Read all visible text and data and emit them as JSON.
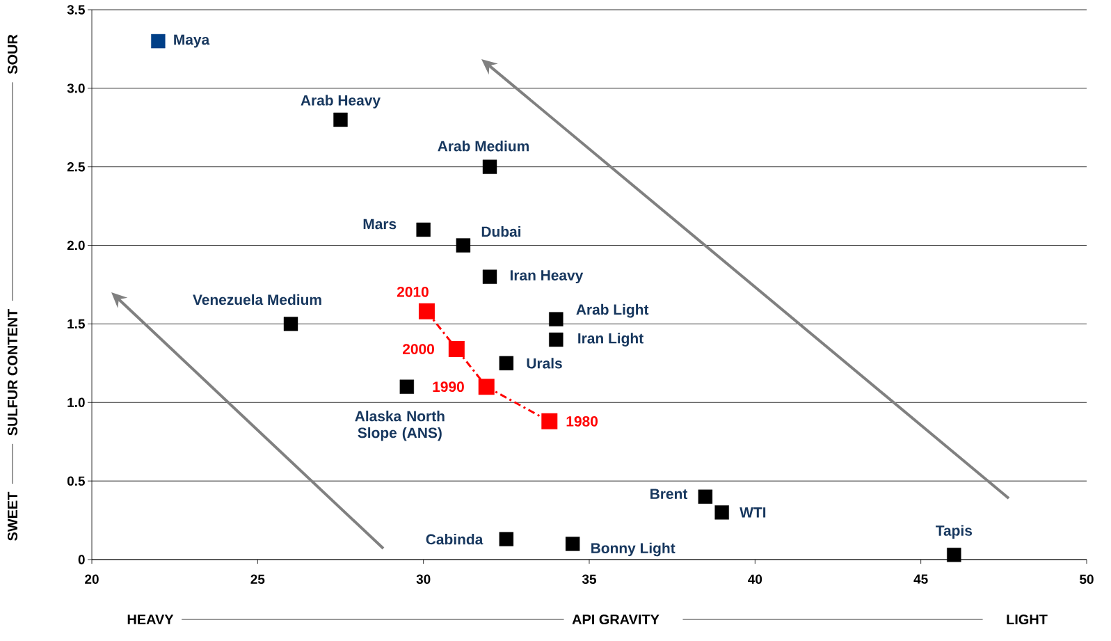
{
  "chart_data": {
    "type": "scatter",
    "xlabel": "API GRAVITY",
    "ylabel": "SULFUR CONTENT",
    "xlim": [
      20,
      50
    ],
    "ylim": [
      0,
      3.5
    ],
    "xticks": [
      20,
      25,
      30,
      35,
      40,
      45,
      50
    ],
    "yticks": [
      0,
      {
        "value": 0.5,
        "label": "0.5"
      },
      {
        "value": 1,
        "label": "1.0"
      },
      {
        "value": 1.5,
        "label": "1.5"
      },
      {
        "value": 2,
        "label": "2.0"
      },
      {
        "value": 2.5,
        "label": "2.5"
      },
      {
        "value": 3,
        "label": "3.0"
      },
      {
        "value": 3.5,
        "label": "3.5"
      }
    ],
    "grid": "y",
    "marker": "square",
    "series": [
      {
        "color": "#003f87",
        "x": [
          22.0
        ],
        "values": [
          3.3
        ]
      },
      {
        "color": "#000000",
        "x": [
          27.5,
          32.0,
          30.0,
          31.2,
          32.0,
          26.0,
          34.0,
          34.0,
          32.5,
          29.5,
          38.5,
          39.0,
          32.5,
          34.5,
          46.0
        ],
        "values": [
          2.8,
          2.5,
          2.1,
          2.0,
          1.8,
          1.5,
          1.53,
          1.4,
          1.25,
          1.1,
          0.4,
          0.3,
          0.13,
          0.1,
          0.03
        ]
      },
      {
        "type": "line",
        "color": "#ff0000",
        "line_style": "dashed",
        "x": [
          30.1,
          31.0,
          31.9,
          33.8
        ],
        "values": [
          1.58,
          1.34,
          1.1,
          0.88
        ]
      }
    ],
    "annotations": [
      {
        "text": "Maya",
        "x": 22.0,
        "y": 3.3
      },
      {
        "text": "Arab Heavy",
        "x": 27.5,
        "y": 2.8
      },
      {
        "text": "Arab Medium",
        "x": 32.0,
        "y": 2.5
      },
      {
        "text": "Mars",
        "x": 30.0,
        "y": 2.1
      },
      {
        "text": "Dubai",
        "x": 31.2,
        "y": 2.0
      },
      {
        "text": "Iran Heavy",
        "x": 32.0,
        "y": 1.8
      },
      {
        "text": "Venezuela Medium",
        "x": 26.0,
        "y": 1.5
      },
      {
        "text": "Arab Light",
        "x": 34.0,
        "y": 1.53
      },
      {
        "text": "Iran Light",
        "x": 34.0,
        "y": 1.4
      },
      {
        "text": "Urals",
        "x": 32.5,
        "y": 1.25
      },
      {
        "text": "Alaska North Slope (ANS)",
        "x": 29.5,
        "y": 1.1
      },
      {
        "text": "Brent",
        "x": 38.5,
        "y": 0.4
      },
      {
        "text": "WTI",
        "x": 39.0,
        "y": 0.3
      },
      {
        "text": "Cabinda",
        "x": 32.5,
        "y": 0.13
      },
      {
        "text": "Bonny Light",
        "x": 34.5,
        "y": 0.1
      },
      {
        "text": "Tapis",
        "x": 46.0,
        "y": 0.03
      },
      {
        "text": "2010",
        "x": 30.1,
        "y": 1.58
      },
      {
        "text": "2000",
        "x": 31.0,
        "y": 1.34
      },
      {
        "text": "1990",
        "x": 31.9,
        "y": 1.1
      },
      {
        "text": "1980",
        "x": 33.8,
        "y": 0.88
      },
      "HEAVY",
      "LIGHT",
      "SWEET",
      "SOUR"
    ]
  }
}
